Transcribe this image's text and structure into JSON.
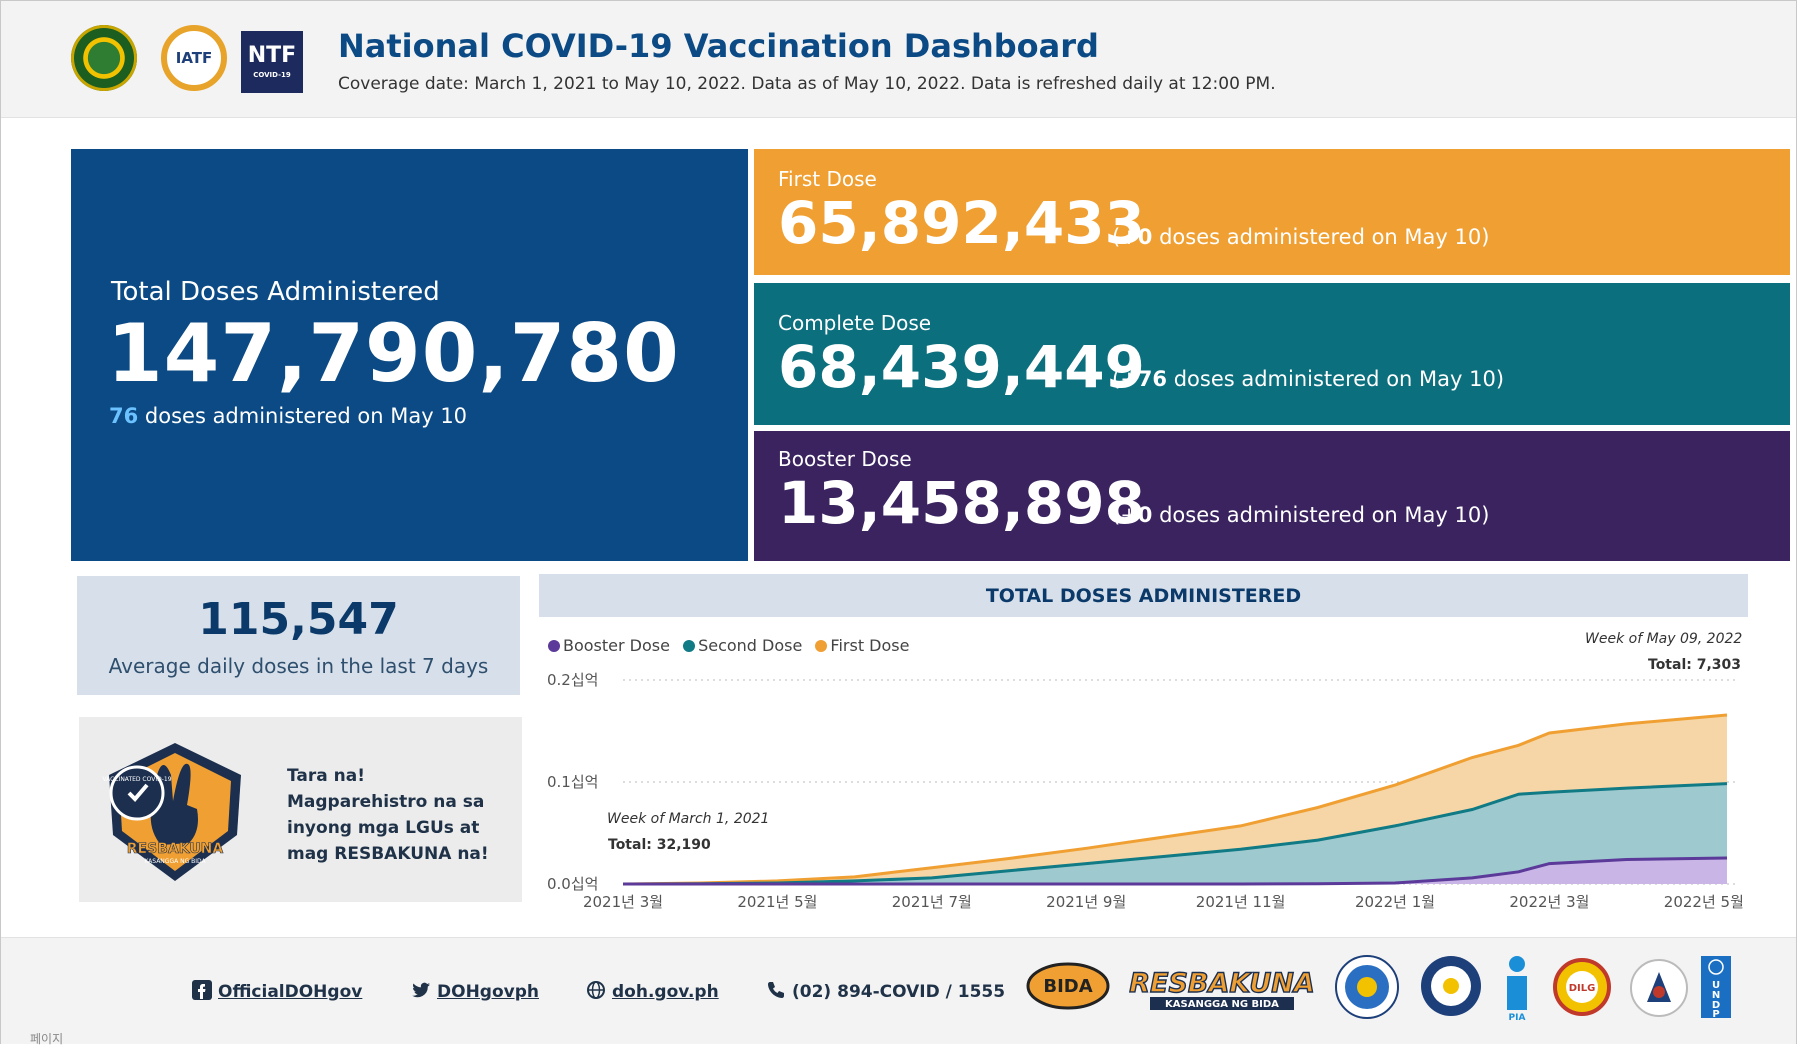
{
  "header": {
    "title": "National COVID-19 Vaccination Dashboard",
    "subtitle": "Coverage date: March 1, 2021 to May 10, 2022. Data as of May 10, 2022. Data is refreshed daily at 12:00 PM.",
    "logos": [
      "doh-seal",
      "IATF",
      "NTF"
    ],
    "iatf_text": "IATF",
    "ntf_text": "NTF",
    "ntf_sub": "COVID-19"
  },
  "total": {
    "label": "Total Doses Administered",
    "value": "147,790,780",
    "sub_count": "76",
    "sub_text": " doses administered on May 10"
  },
  "doses": [
    {
      "label": "First Dose",
      "value": "65,892,433",
      "note_prefix": "(+",
      "note_count": "0",
      "note_suffix": " doses administered on May 10)",
      "color": "#f0a033"
    },
    {
      "label": "Complete Dose",
      "value": "68,439,449",
      "note_prefix": "(+",
      "note_count": "76",
      "note_suffix": " doses administered on May 10)",
      "color": "#0c6f7d"
    },
    {
      "label": "Booster Dose",
      "value": "13,458,898",
      "note_prefix": "(+",
      "note_count": "0",
      "note_suffix": " doses administered on May 10)",
      "color": "#3a235f"
    }
  ],
  "average": {
    "value": "115,547",
    "label": "Average daily doses in the last 7 days"
  },
  "promo": {
    "text": "Tara na! Magparehistro na sa inyong mga LGUs at mag RESBAKUNA na!",
    "badge_title": "RESBAKUNA",
    "badge_sub": "KASANGGA NG BIDA",
    "badge_ring": "VACCINATED COVID-19"
  },
  "chart_data": {
    "type": "area",
    "title": "TOTAL DOSES ADMINISTERED",
    "legend": [
      {
        "name": "Booster Dose",
        "color": "#5b3a9a"
      },
      {
        "name": "Second Dose",
        "color": "#107a85"
      },
      {
        "name": "First Dose",
        "color": "#f0a033"
      }
    ],
    "y_ticks": [
      "0.2십억",
      "0.1십억",
      "0.0십억"
    ],
    "ylim": [
      0,
      0.2
    ],
    "x_ticks": [
      "2021년 3월",
      "2021년 5월",
      "2021년 7월",
      "2021년 9월",
      "2021년 11월",
      "2022년 1월",
      "2022년 3월",
      "2022년 5월"
    ],
    "x_months": [
      0,
      2,
      4,
      6,
      8,
      10,
      12,
      14
    ],
    "x_max": 14.3,
    "series": [
      {
        "name": "Booster Dose",
        "x": [
          0,
          8,
          9,
          10,
          11,
          11.6,
          12,
          13,
          14.3
        ],
        "values": [
          0,
          0,
          0.0002,
          0.001,
          0.006,
          0.012,
          0.02,
          0.024,
          0.0255
        ]
      },
      {
        "name": "Second Dose",
        "x": [
          0,
          1,
          2,
          3,
          4,
          5,
          6,
          7,
          8,
          9,
          10,
          11,
          11.6,
          12,
          13,
          14.3
        ],
        "values": [
          0,
          0.0003,
          0.001,
          0.003,
          0.006,
          0.013,
          0.02,
          0.027,
          0.034,
          0.043,
          0.057,
          0.073,
          0.088,
          0.09,
          0.094,
          0.0984
        ]
      },
      {
        "name": "First Dose",
        "x": [
          0,
          1,
          2,
          3,
          4,
          5,
          6,
          7,
          8,
          9,
          10,
          11,
          11.6,
          12,
          13,
          14.3
        ],
        "values": [
          0,
          0.001,
          0.003,
          0.007,
          0.016,
          0.025,
          0.035,
          0.046,
          0.057,
          0.075,
          0.097,
          0.124,
          0.136,
          0.148,
          0.157,
          0.1657
        ]
      }
    ],
    "annotation_start": {
      "week": "Week of March 1, 2021",
      "total_label": "Total:",
      "total": "32,190"
    },
    "annotation_end": {
      "week": "Week of May 09, 2022",
      "total_label": "Total:",
      "total": "7,303"
    }
  },
  "footer": {
    "facebook": "OfficialDOHgov",
    "twitter": "DOHgovph",
    "website": "doh.gov.ph",
    "phone": "(02) 894-COVID / 1555",
    "partner_logos": [
      "BIDA",
      "RESBAKUNA",
      "PCOO",
      "PIA",
      "DILG",
      "UNDP"
    ],
    "bida_text": "BIDA",
    "resbakuna_title": "RESBAKUNA",
    "resbakuna_sub": "KASANGGA NG BIDA",
    "pia_text": "PIA",
    "dilg_text": "DILG",
    "undp_text": "UNDP"
  },
  "bottom_label": "페이지"
}
